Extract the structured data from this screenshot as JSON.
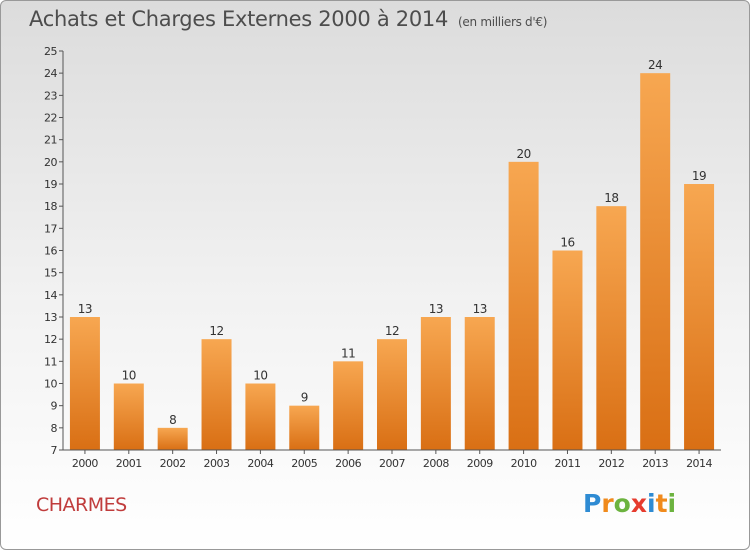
{
  "title": "Achats et Charges Externes 2000 à 2014",
  "unit": "(en milliers d'€)",
  "commune": "CHARMES",
  "logo": {
    "letters": [
      "P",
      "r",
      "o",
      "x",
      "i",
      "t",
      "i"
    ],
    "colors": [
      "#2e8bd3",
      "#f08a1c",
      "#6cb33f",
      "#e63b2e",
      "#2e8bd3",
      "#f08a1c",
      "#6cb33f"
    ]
  },
  "colors": {
    "bar_light": "#f7a751",
    "bar_dark": "#d96f14",
    "axis": "#555555",
    "text": "#333333"
  },
  "chart_data": {
    "type": "bar",
    "title": "Achats et Charges Externes 2000 à 2014",
    "xlabel": "",
    "ylabel": "",
    "categories": [
      "2000",
      "2001",
      "2002",
      "2003",
      "2004",
      "2005",
      "2006",
      "2007",
      "2008",
      "2009",
      "2010",
      "2011",
      "2012",
      "2013",
      "2014"
    ],
    "values": [
      13,
      10,
      8,
      12,
      10,
      9,
      11,
      12,
      13,
      13,
      20,
      16,
      18,
      24,
      19
    ],
    "ylim": [
      7,
      25
    ],
    "yticks": [
      7,
      8,
      9,
      10,
      11,
      12,
      13,
      14,
      15,
      16,
      17,
      18,
      19,
      20,
      21,
      22,
      23,
      24,
      25
    ],
    "grid": false,
    "legend": "none"
  }
}
